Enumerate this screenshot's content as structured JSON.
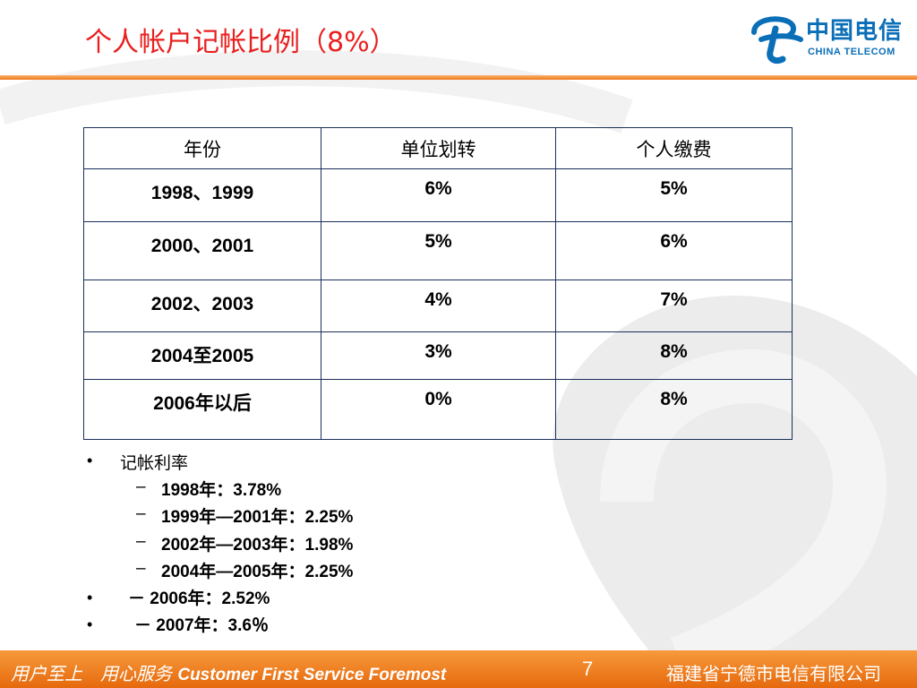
{
  "slide": {
    "title": "个人帐户记帐比例（8%）",
    "logo": {
      "cn": "中国电信",
      "en": "CHINA TELECOM",
      "icon": "china-telecom-logo-icon"
    }
  },
  "table": {
    "headers": [
      "年份",
      "单位划转",
      "个人缴费"
    ],
    "rows": [
      [
        "1998、1999",
        "6%",
        "5%"
      ],
      [
        "2000、2001",
        "5%",
        "6%"
      ],
      [
        "2002、2003",
        "4%",
        "7%"
      ],
      [
        "2004至2005",
        "3%",
        "8%"
      ],
      [
        "2006年以后",
        "0%",
        "8%"
      ]
    ]
  },
  "bullets": {
    "heading": "记帐利率",
    "marker": "•",
    "dash": "–",
    "items": [
      "1998年：3.78%",
      "1999年—2001年：2.25%",
      "2002年—2003年：1.98%",
      "2004年—2005年：2.25%"
    ],
    "extra": [
      "－ 2006年：2.52%",
      "－ 2007年：3.6％"
    ]
  },
  "footer": {
    "slogan_cn": "用户至上　用心服务",
    "slogan_en": "Customer First Service Foremost",
    "page_number": "7",
    "company": "福建省宁德市电信有限公司"
  },
  "colors": {
    "title": "#e8201f",
    "accent": "#f07a20",
    "brand": "#0b6fb8",
    "table_border": "#1a2f5a"
  }
}
